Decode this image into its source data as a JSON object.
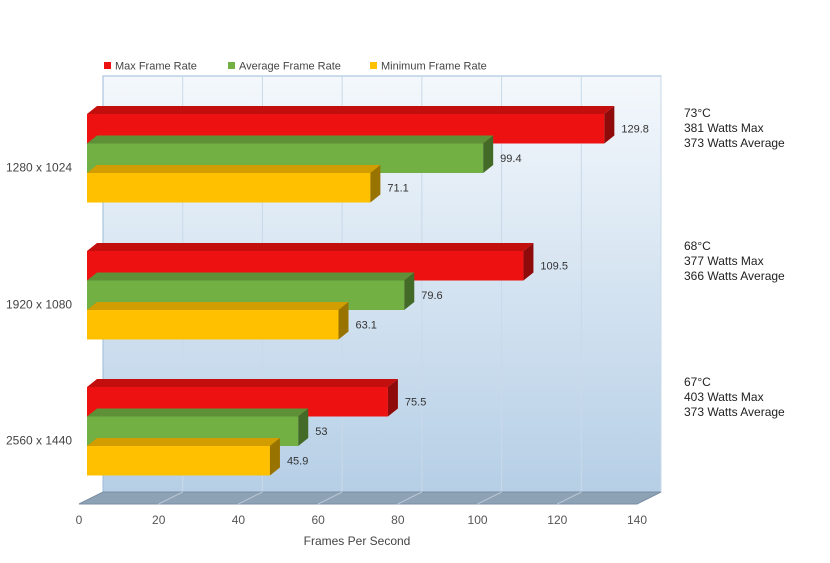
{
  "chart_data": {
    "type": "bar",
    "orientation": "horizontal",
    "title": "",
    "xlabel": "Frames Per Second",
    "ylabel": "",
    "xlim": [
      0,
      140
    ],
    "xticks": [
      0,
      20,
      40,
      60,
      80,
      100,
      120,
      140
    ],
    "grid": true,
    "legend_position": "top",
    "categories": [
      "1280 x 1024",
      "1920 x 1080",
      "2560 x 1440"
    ],
    "series": [
      {
        "name": "Max Frame Rate",
        "color": "#ee1111",
        "values": [
          129.8,
          109.5,
          75.5
        ]
      },
      {
        "name": "Average Frame Rate",
        "color": "#72b043",
        "values": [
          99.4,
          79.6,
          53
        ]
      },
      {
        "name": "Minimum Frame Rate",
        "color": "#ffc000",
        "values": [
          71.1,
          63.1,
          45.9
        ]
      }
    ],
    "annotations": [
      {
        "temp": "73°C",
        "max": "381 Watts Max",
        "avg": "373 Watts Average"
      },
      {
        "temp": "68°C",
        "max": "377 Watts Max",
        "avg": "366 Watts Average"
      },
      {
        "temp": "67°C",
        "max": "403 Watts Max",
        "avg": "373 Watts Average"
      }
    ]
  }
}
